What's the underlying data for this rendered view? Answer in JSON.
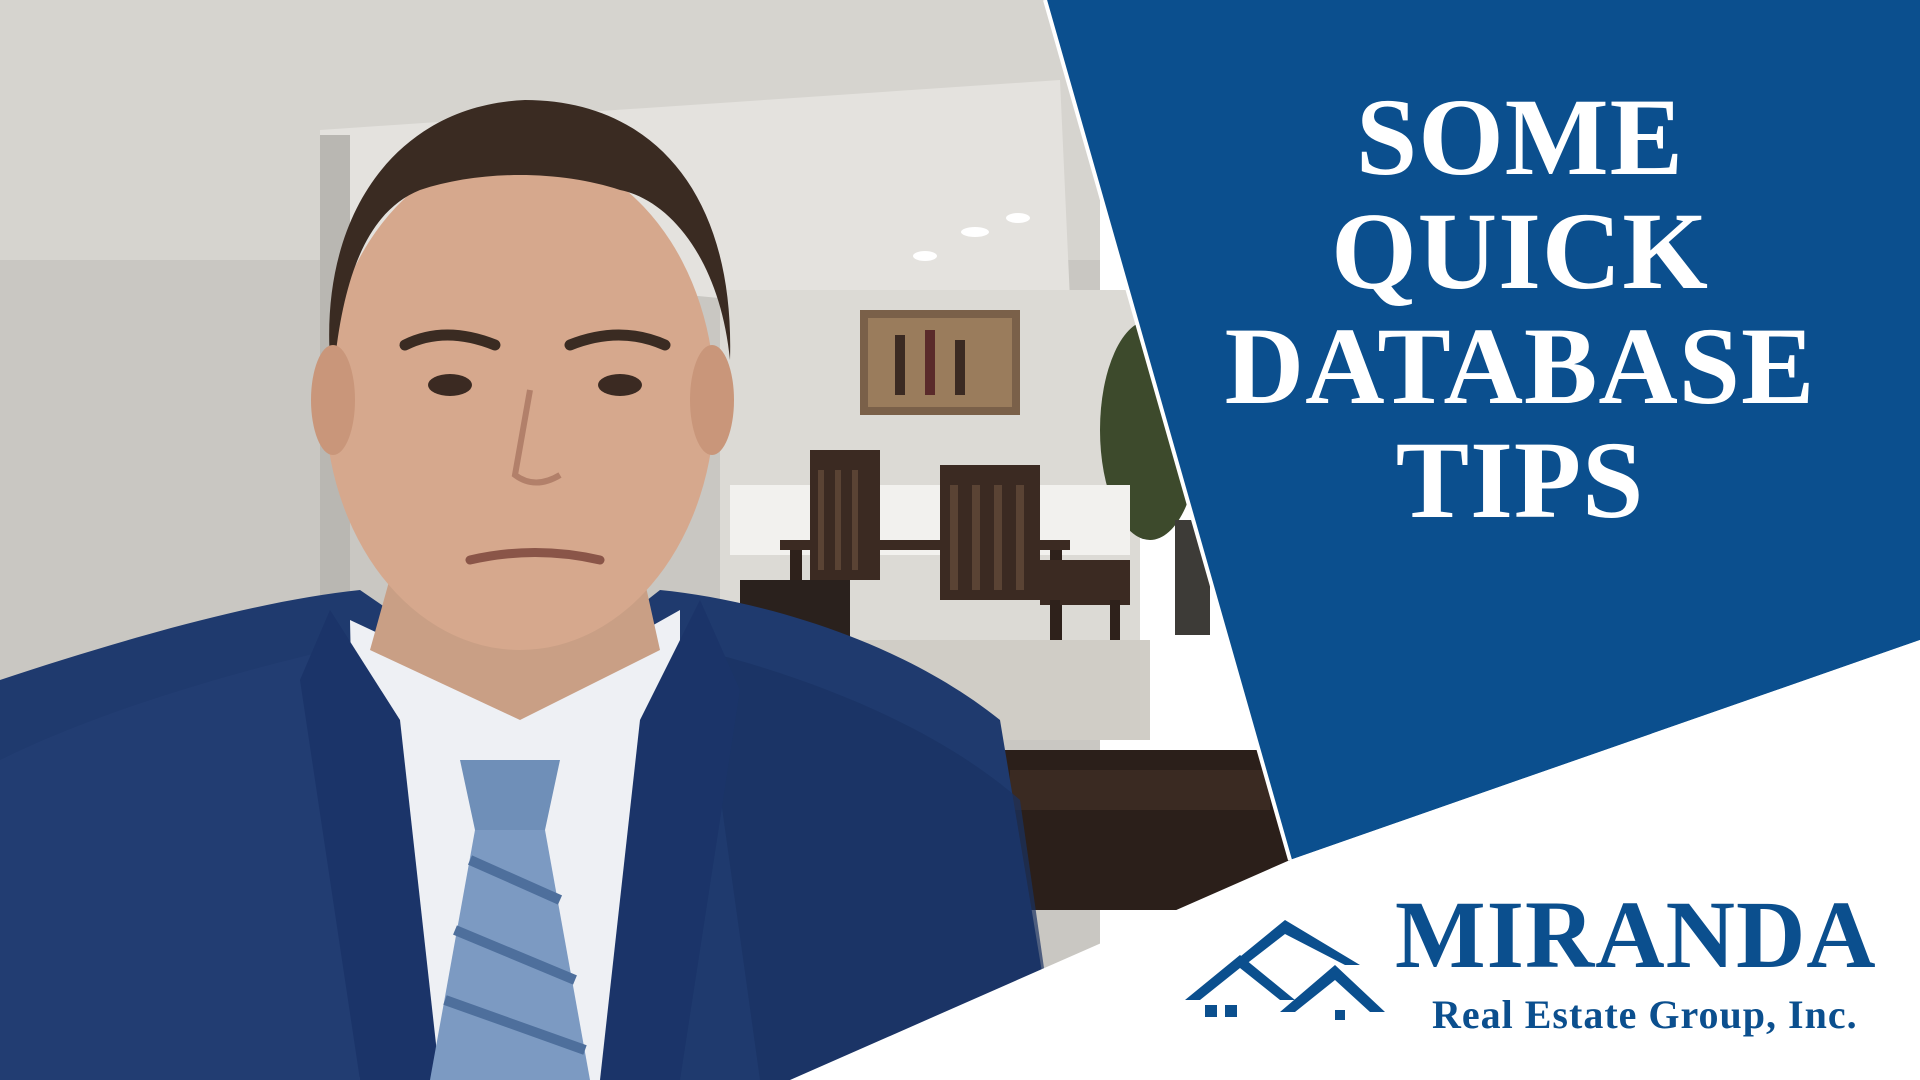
{
  "title": {
    "lines": [
      "SOME",
      "QUICK",
      "DATABASE",
      "TIPS"
    ]
  },
  "logo": {
    "icon": "house-roof-icon",
    "name": "MIRANDA",
    "tagline": "Real Estate Group, Inc."
  },
  "colors": {
    "brand_blue": "#0b4f8e",
    "title_text": "#ffffff",
    "background_white": "#ffffff"
  }
}
